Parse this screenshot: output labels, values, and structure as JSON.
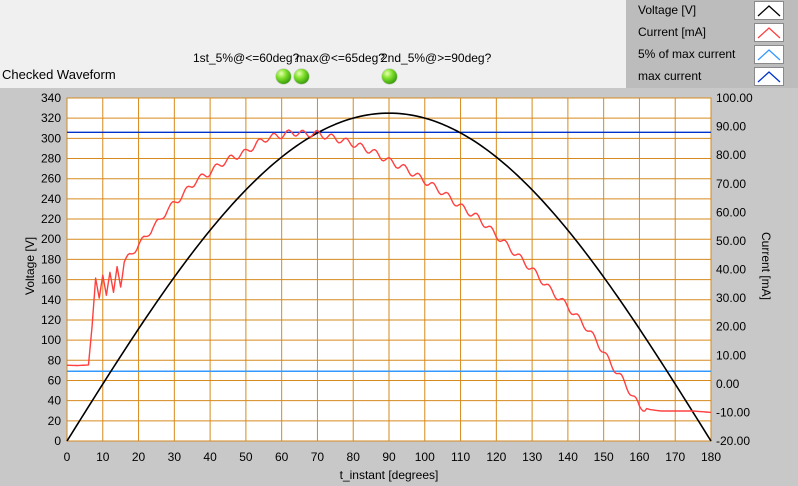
{
  "graph": {
    "title": "Checked Waveform"
  },
  "leds": [
    {
      "label": "1st_5%@<=60deg?",
      "state": "on"
    },
    {
      "label": "max@<=65deg?",
      "state": "on"
    },
    {
      "label": "2nd_5%@>=90deg?",
      "state": "on"
    }
  ],
  "legend": [
    {
      "label": "Voltage [V]",
      "color": "#000000"
    },
    {
      "label": "Current [mA]",
      "color": "#ff4040"
    },
    {
      "label": "5% of max current",
      "color": "#3399ff"
    },
    {
      "label": "max current",
      "color": "#0033cc"
    }
  ],
  "colors": {
    "plot_background": "#ffffff",
    "grid": "#d68a1e",
    "frame": "#c8c8c8",
    "led_on": "#6ad21f"
  },
  "chart_data": {
    "type": "line",
    "xlabel": "t_instant [degrees]",
    "ylabel": "Voltage [V]",
    "y2label": "Current [mA]",
    "xlim": [
      0,
      180
    ],
    "ylim": [
      0,
      340
    ],
    "y2lim": [
      -20,
      100
    ],
    "x_ticks": [
      "0",
      "10",
      "20",
      "30",
      "40",
      "50",
      "60",
      "70",
      "80",
      "90",
      "100",
      "110",
      "120",
      "130",
      "140",
      "150",
      "160",
      "170",
      "180"
    ],
    "y_ticks": [
      "0",
      "20",
      "40",
      "60",
      "80",
      "100",
      "120",
      "140",
      "160",
      "180",
      "200",
      "220",
      "240",
      "260",
      "280",
      "300",
      "320",
      "340"
    ],
    "y2_ticks": [
      "-20.00",
      "-10.00",
      "0.00",
      "10.00",
      "20.00",
      "30.00",
      "40.00",
      "50.00",
      "60.00",
      "70.00",
      "80.00",
      "90.00",
      "100.00"
    ],
    "grid": true,
    "legend_position": "top-right",
    "series": [
      {
        "name": "Voltage [V]",
        "axis": "left",
        "color": "#000000",
        "x": [
          0,
          5,
          10,
          15,
          20,
          25,
          30,
          35,
          40,
          45,
          50,
          55,
          60,
          65,
          70,
          75,
          80,
          85,
          90,
          95,
          100,
          105,
          110,
          115,
          120,
          125,
          130,
          135,
          140,
          145,
          150,
          155,
          160,
          165,
          170,
          175,
          180
        ],
        "y": [
          0,
          28.4,
          56.4,
          84.1,
          111.2,
          137.4,
          162.5,
          186.4,
          208.9,
          229.8,
          248.9,
          266.2,
          281.5,
          294.5,
          305.4,
          313.9,
          320.1,
          323.8,
          325,
          323.8,
          320.1,
          313.9,
          305.4,
          294.5,
          281.5,
          266.2,
          248.9,
          229.8,
          208.9,
          186.4,
          162.5,
          137.4,
          111.2,
          84.1,
          56.4,
          28.4,
          0
        ]
      },
      {
        "name": "Current [mA]",
        "axis": "right",
        "color": "#ff4040",
        "x": [
          0,
          3,
          6,
          7,
          8,
          9,
          10,
          11,
          12,
          13,
          14,
          15,
          16,
          18,
          20,
          22,
          24,
          26,
          28,
          30,
          33,
          36,
          40,
          43,
          46,
          50,
          53,
          56,
          60,
          63,
          66,
          70,
          73,
          76,
          80,
          85,
          90,
          95,
          100,
          105,
          110,
          115,
          120,
          125,
          130,
          135,
          140,
          145,
          148,
          150,
          152,
          155,
          158,
          160,
          163,
          166,
          170,
          175,
          180
        ],
        "y": [
          6.5,
          6.4,
          6.6,
          20,
          37,
          30,
          38,
          31,
          39,
          32,
          41,
          35,
          43,
          45,
          49,
          51,
          55,
          57,
          61,
          63,
          67,
          71,
          74,
          77,
          79,
          81,
          84,
          86,
          87,
          88,
          87.5,
          87.5,
          86.5,
          85.5,
          84,
          81.5,
          78,
          75,
          71,
          67,
          62,
          58,
          52,
          46,
          40,
          33,
          27,
          20,
          15,
          11,
          7,
          2,
          -4,
          -8,
          -9,
          -9.5,
          -9.5,
          -9.5,
          -10
        ]
      },
      {
        "name": "5% of max current",
        "axis": "right",
        "color": "#3399ff",
        "x": [
          0,
          180
        ],
        "y": [
          4.4,
          4.4
        ]
      },
      {
        "name": "max current",
        "axis": "right",
        "color": "#0033cc",
        "x": [
          0,
          180
        ],
        "y": [
          88,
          88
        ]
      }
    ]
  }
}
